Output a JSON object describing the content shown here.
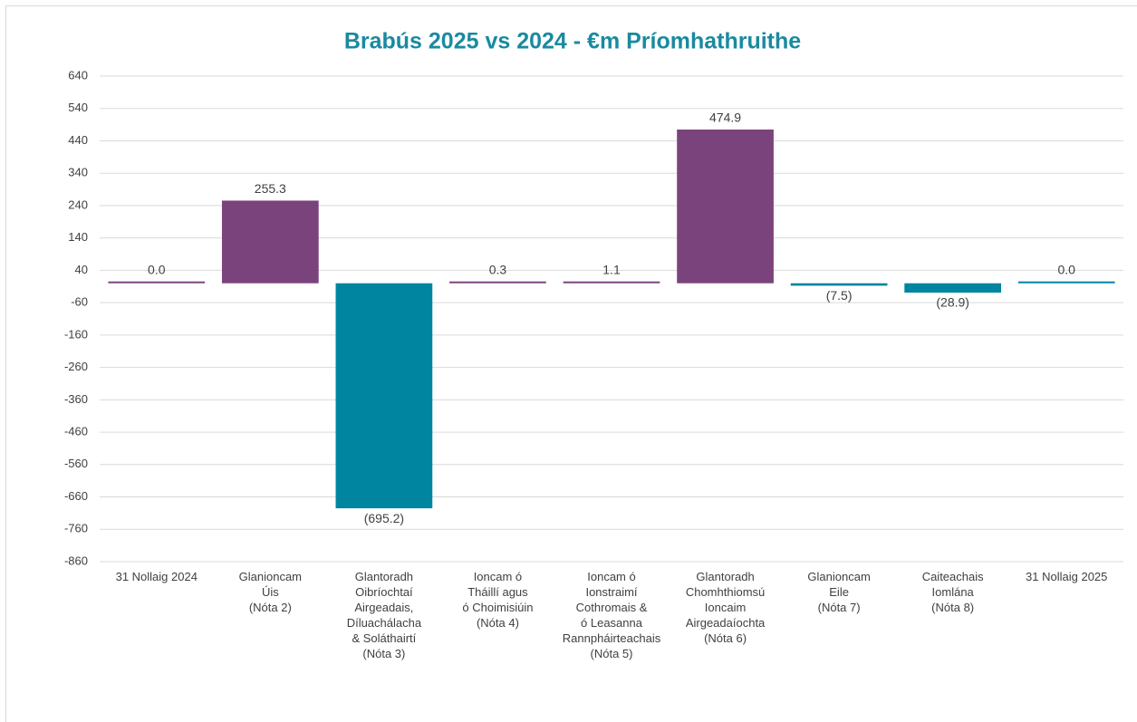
{
  "chart_data": {
    "type": "bar",
    "title": "Brabús 2025 vs 2024 - €m Príomhathruithe",
    "categories": [
      [
        "31 Nollaig 2024"
      ],
      [
        "Glanioncam",
        "Úis",
        "(Nóta 2)"
      ],
      [
        "Glantoradh",
        "Oibríochtaí",
        "Airgeadais,",
        "Díluachálacha",
        "& Soláthairtí",
        "(Nóta 3)"
      ],
      [
        "Ioncam ó",
        "Tháillí agus",
        "ó Choimisiúin",
        "(Nóta 4)"
      ],
      [
        "Ioncam ó",
        "Ionstraimí",
        "Cothromais &",
        "ó Leasanna",
        "Rannpháirteachais",
        "(Nóta 5)"
      ],
      [
        "Glantoradh",
        "Chomhthiomsú",
        "Ioncaim",
        "Airgeadaíochta",
        "(Nóta 6)"
      ],
      [
        "Glanioncam",
        "Eile",
        "(Nóta 7)"
      ],
      [
        "Caiteachais",
        "Iomlána",
        "(Nóta 8)"
      ],
      [
        "31 Nollaig 2025"
      ]
    ],
    "values": [
      0.0,
      255.3,
      -695.2,
      0.3,
      1.1,
      474.9,
      -7.5,
      -28.9,
      0.0
    ],
    "value_labels": [
      "0.0",
      "255.3",
      "(695.2)",
      "0.3",
      "1.1",
      "474.9",
      "(7.5)",
      "(28.9)",
      "0.0"
    ],
    "colors": [
      "#7b437c",
      "#7b437c",
      "#0085a1",
      "#7b437c",
      "#7b437c",
      "#7b437c",
      "#0085a1",
      "#0085a1",
      "#0085a1"
    ],
    "ylim": [
      -860,
      640
    ],
    "yticks": [
      -860,
      -760,
      -660,
      -560,
      -460,
      -360,
      -260,
      -160,
      -60,
      40,
      140,
      240,
      340,
      440,
      540,
      640
    ],
    "grid": true
  }
}
